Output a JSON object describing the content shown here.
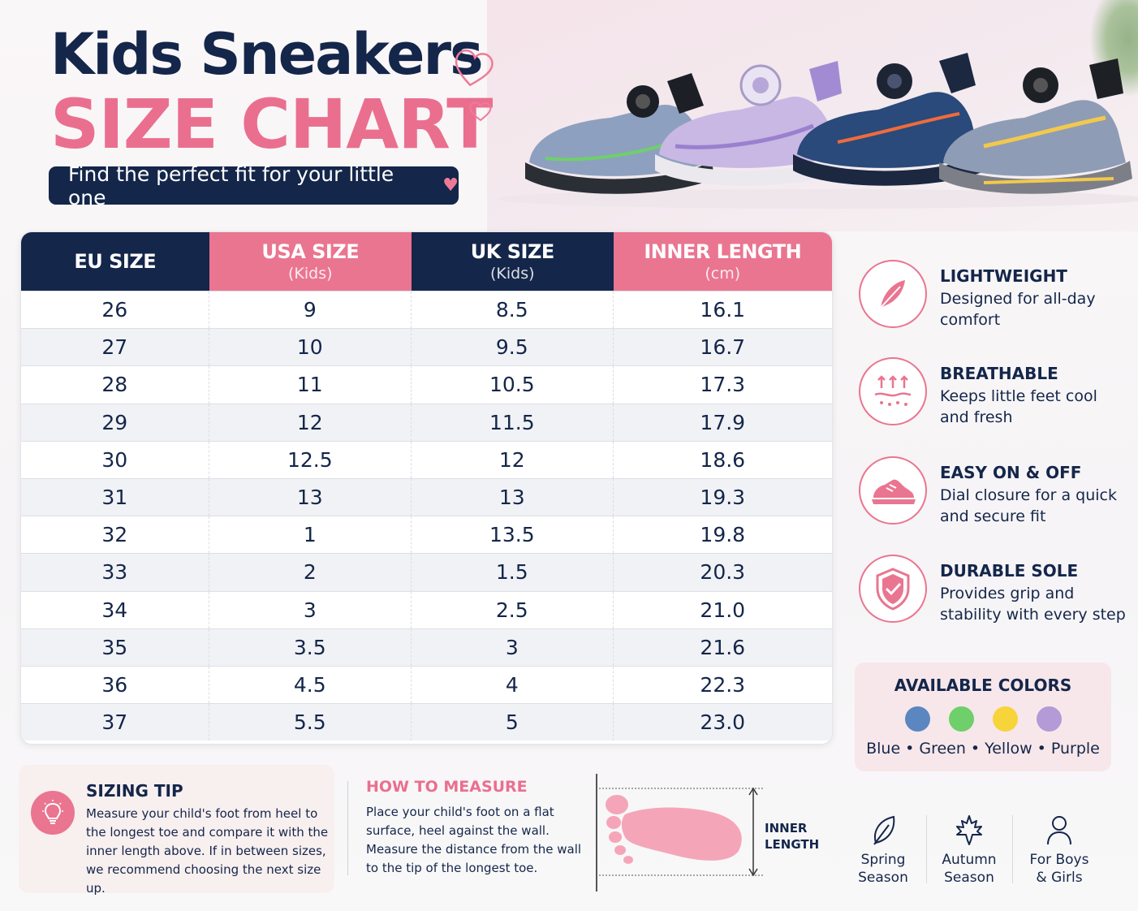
{
  "header": {
    "title": "Kids Sneakers",
    "subtitle": "SIZE CHART",
    "tagline": "Find the perfect fit for your little one"
  },
  "table": {
    "columns": [
      {
        "label": "EU SIZE",
        "sub": ""
      },
      {
        "label": "USA SIZE",
        "sub": "(Kids)"
      },
      {
        "label": "UK SIZE",
        "sub": "(Kids)"
      },
      {
        "label": "INNER LENGTH",
        "sub": "(cm)"
      }
    ],
    "rows": [
      [
        "26",
        "9",
        "8.5",
        "16.1"
      ],
      [
        "27",
        "10",
        "9.5",
        "16.7"
      ],
      [
        "28",
        "11",
        "10.5",
        "17.3"
      ],
      [
        "29",
        "12",
        "11.5",
        "17.9"
      ],
      [
        "30",
        "12.5",
        "12",
        "18.6"
      ],
      [
        "31",
        "13",
        "13",
        "19.3"
      ],
      [
        "32",
        "1",
        "13.5",
        "19.8"
      ],
      [
        "33",
        "2",
        "1.5",
        "20.3"
      ],
      [
        "34",
        "3",
        "2.5",
        "21.0"
      ],
      [
        "35",
        "3.5",
        "3",
        "21.6"
      ],
      [
        "36",
        "4.5",
        "4",
        "22.3"
      ],
      [
        "37",
        "5.5",
        "5",
        "23.0"
      ]
    ]
  },
  "features": [
    {
      "title": "LIGHTWEIGHT",
      "desc": "Designed for all-day comfort",
      "icon": "feather-icon"
    },
    {
      "title": "BREATHABLE",
      "desc": "Keeps little feet cool and fresh",
      "icon": "airflow-icon"
    },
    {
      "title": "EASY ON & OFF",
      "desc": "Dial closure for a quick and secure fit",
      "icon": "sneaker-icon"
    },
    {
      "title": "DURABLE SOLE",
      "desc": "Provides grip and stability with every step",
      "icon": "shield-check-icon"
    }
  ],
  "colors": {
    "title": "AVAILABLE COLORS",
    "items": [
      {
        "name": "Blue",
        "hex": "#5b86c0"
      },
      {
        "name": "Green",
        "hex": "#6fcf6a"
      },
      {
        "name": "Yellow",
        "hex": "#f7d43a"
      },
      {
        "name": "Purple",
        "hex": "#b49ad6"
      }
    ],
    "separator": "•"
  },
  "tip": {
    "title": "SIZING TIP",
    "text": "Measure your child's foot from heel to the longest toe and compare it with the inner length above. If in between sizes, we recommend choosing the next size up."
  },
  "measure": {
    "title": "HOW TO MEASURE",
    "line1": "Place your child's foot on a flat surface, heel against the wall.",
    "line2": "Measure the distance from the wall to the tip of the longest toe.",
    "inner_label_1": "INNER",
    "inner_label_2": "LENGTH"
  },
  "seasons": [
    {
      "line1": "Spring",
      "line2": "Season",
      "icon": "leaf-icon"
    },
    {
      "line1": "Autumn",
      "line2": "Season",
      "icon": "maple-leaf-icon"
    },
    {
      "line1": "For Boys",
      "line2": "& Girls",
      "icon": "person-icon"
    }
  ],
  "palette": {
    "navy": "#14264a",
    "pink": "#ea7590"
  }
}
